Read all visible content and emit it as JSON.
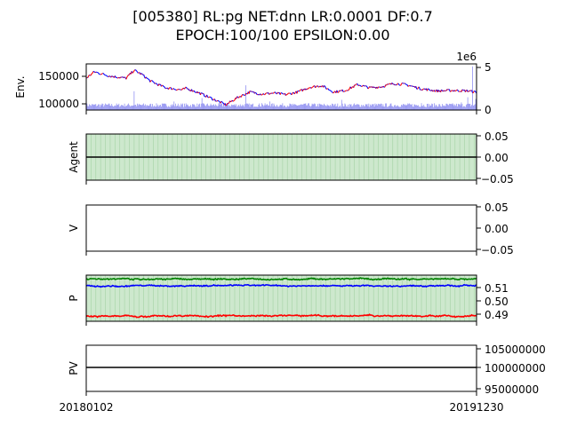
{
  "title": {
    "line1": "[005380] RL:pg NET:dnn LR:0.0001 DF:0.7",
    "line2": "EPOCH:100/100 EPSILON:0.00"
  },
  "colors": {
    "candle_up": "#ff0000",
    "candle_down": "#0000ff",
    "volume": "#7777ee",
    "hold_band": "#cde8cd",
    "p_top": "#008000",
    "p_mid": "#0000ff",
    "p_low": "#ff0000",
    "zero_line": "#000000"
  },
  "chart_data": [
    {
      "id": "env",
      "type": "line",
      "ylabel": "Env.",
      "xlim_labels": [
        "20180102",
        "20191230"
      ],
      "y_left": {
        "ticks": [
          100000,
          150000
        ],
        "tick_labels": [
          "100000",
          "150000"
        ],
        "ylim": [
          88000,
          175000
        ]
      },
      "y_right": {
        "ticks": [
          0,
          5
        ],
        "tick_labels": [
          "0",
          "5"
        ],
        "ylim": [
          0,
          5.4
        ],
        "offset_label": "1e6"
      },
      "price_series": {
        "name": "",
        "x_index": [
          0,
          10,
          20,
          30,
          40,
          50,
          60,
          70,
          80,
          90,
          100,
          110,
          120,
          125,
          135,
          145,
          160,
          175,
          190,
          205,
          220,
          235,
          250,
          265,
          280,
          295,
          310,
          325,
          340,
          355,
          370,
          385,
          400,
          420,
          440,
          460,
          480,
          490
        ],
        "values": [
          148000,
          160000,
          156000,
          152000,
          150000,
          148000,
          163000,
          155000,
          143000,
          136000,
          130000,
          128000,
          126000,
          129000,
          124000,
          118000,
          108000,
          98000,
          112000,
          122000,
          118000,
          120000,
          117000,
          122000,
          131000,
          134000,
          122000,
          125000,
          136000,
          130000,
          132000,
          138000,
          136000,
          128000,
          124000,
          125000,
          124000,
          121000
        ]
      },
      "volume_series": {
        "name": "",
        "note_scale": "1e6",
        "x_index": [
          0,
          40,
          60,
          110,
          145,
          178,
          200,
          220,
          230,
          260,
          300,
          320,
          350,
          380,
          420,
          445,
          470,
          478,
          484,
          488
        ],
        "values": [
          0.9,
          0.6,
          2.2,
          1.0,
          1.4,
          0.7,
          2.9,
          0.8,
          1.0,
          0.6,
          0.5,
          1.2,
          0.7,
          0.5,
          0.8,
          0.4,
          0.9,
          1.5,
          5.1,
          1.3
        ]
      },
      "n_points": 490
    },
    {
      "id": "agent",
      "type": "line",
      "ylabel": "Agent",
      "y_right": {
        "ticks": [
          0.05,
          0.0,
          -0.05
        ],
        "tick_labels": [
          "0.05",
          "0.00",
          "−0.05"
        ],
        "ylim": [
          -0.055,
          0.055
        ]
      },
      "hold_shading": "all",
      "series": [
        {
          "name": "",
          "values": [
            0,
            0
          ]
        }
      ]
    },
    {
      "id": "v",
      "type": "line",
      "ylabel": "V",
      "y_right": {
        "ticks": [
          0.05,
          0.0,
          -0.05
        ],
        "tick_labels": [
          "0.05",
          "0.00",
          "−0.05"
        ],
        "ylim": [
          -0.055,
          0.055
        ]
      },
      "series": []
    },
    {
      "id": "p",
      "type": "line",
      "ylabel": "P",
      "y_right": {
        "ticks": [
          0.51,
          0.5,
          0.49
        ],
        "tick_labels": [
          "0.51",
          "0.50",
          "0.49"
        ],
        "ylim": [
          0.4855,
          0.5195
        ]
      },
      "hold_shading": "all",
      "series": [
        {
          "name": "",
          "color_key": "p_top",
          "mean": 0.5165,
          "noise": 0.0007
        },
        {
          "name": "",
          "color_key": "p_mid",
          "mean": 0.5117,
          "noise": 0.0006
        },
        {
          "name": "",
          "color_key": "p_low",
          "mean": 0.4895,
          "noise": 0.0007
        }
      ]
    },
    {
      "id": "pv",
      "type": "line",
      "ylabel": "PV",
      "y_right": {
        "ticks": [
          105000000,
          100000000,
          95000000
        ],
        "tick_labels": [
          "105000000",
          "100000000",
          "95000000"
        ],
        "ylim": [
          94500000,
          105500000
        ]
      },
      "series": [
        {
          "name": "",
          "values": [
            100000000,
            100000000
          ]
        }
      ]
    }
  ]
}
